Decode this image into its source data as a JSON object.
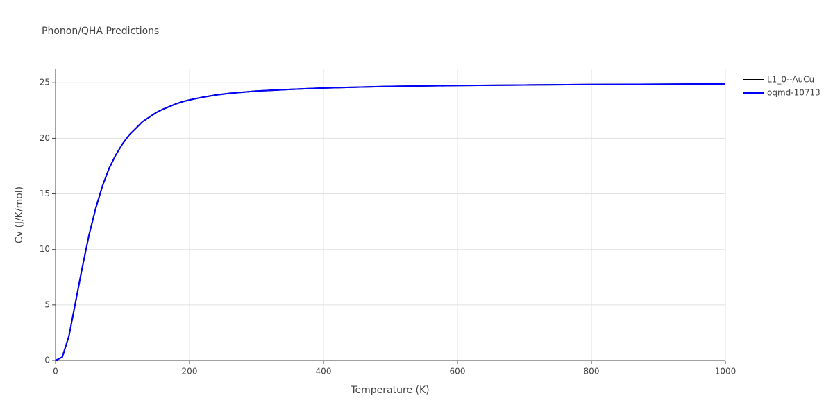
{
  "chart_data": {
    "type": "line",
    "title": "Phonon/QHA Predictions",
    "x_label": "Temperature (K)",
    "y_label": "Cv (J/K/mol)",
    "x": [
      0,
      10,
      20,
      30,
      40,
      50,
      60,
      70,
      80,
      90,
      100,
      110,
      120,
      130,
      140,
      150,
      160,
      170,
      180,
      190,
      200,
      220,
      240,
      260,
      280,
      300,
      350,
      400,
      450,
      500,
      600,
      700,
      800,
      900,
      1000
    ],
    "series": [
      {
        "name": "L1_0--AuCu",
        "color": "#000000",
        "values": [
          0,
          0.3,
          2.2,
          5.3,
          8.4,
          11.3,
          13.7,
          15.7,
          17.3,
          18.5,
          19.5,
          20.3,
          20.9,
          21.5,
          21.9,
          22.3,
          22.6,
          22.85,
          23.1,
          23.3,
          23.45,
          23.7,
          23.9,
          24.05,
          24.15,
          24.25,
          24.4,
          24.52,
          24.6,
          24.67,
          24.75,
          24.8,
          24.84,
          24.87,
          24.9
        ]
      },
      {
        "name": "oqmd-10713",
        "color": "#0000ff",
        "values": [
          0,
          0.3,
          2.2,
          5.3,
          8.4,
          11.3,
          13.7,
          15.7,
          17.3,
          18.5,
          19.5,
          20.3,
          20.9,
          21.5,
          21.9,
          22.3,
          22.6,
          22.85,
          23.1,
          23.3,
          23.45,
          23.7,
          23.9,
          24.05,
          24.15,
          24.25,
          24.4,
          24.52,
          24.6,
          24.67,
          24.75,
          24.8,
          24.84,
          24.87,
          24.9
        ]
      }
    ],
    "xlim": [
      0,
      1000
    ],
    "xticks": [
      0,
      200,
      400,
      600,
      800,
      1000
    ],
    "ylim": [
      0,
      26.2
    ],
    "yticks": [
      0,
      5,
      10,
      15,
      20,
      25
    ],
    "grid": true
  }
}
